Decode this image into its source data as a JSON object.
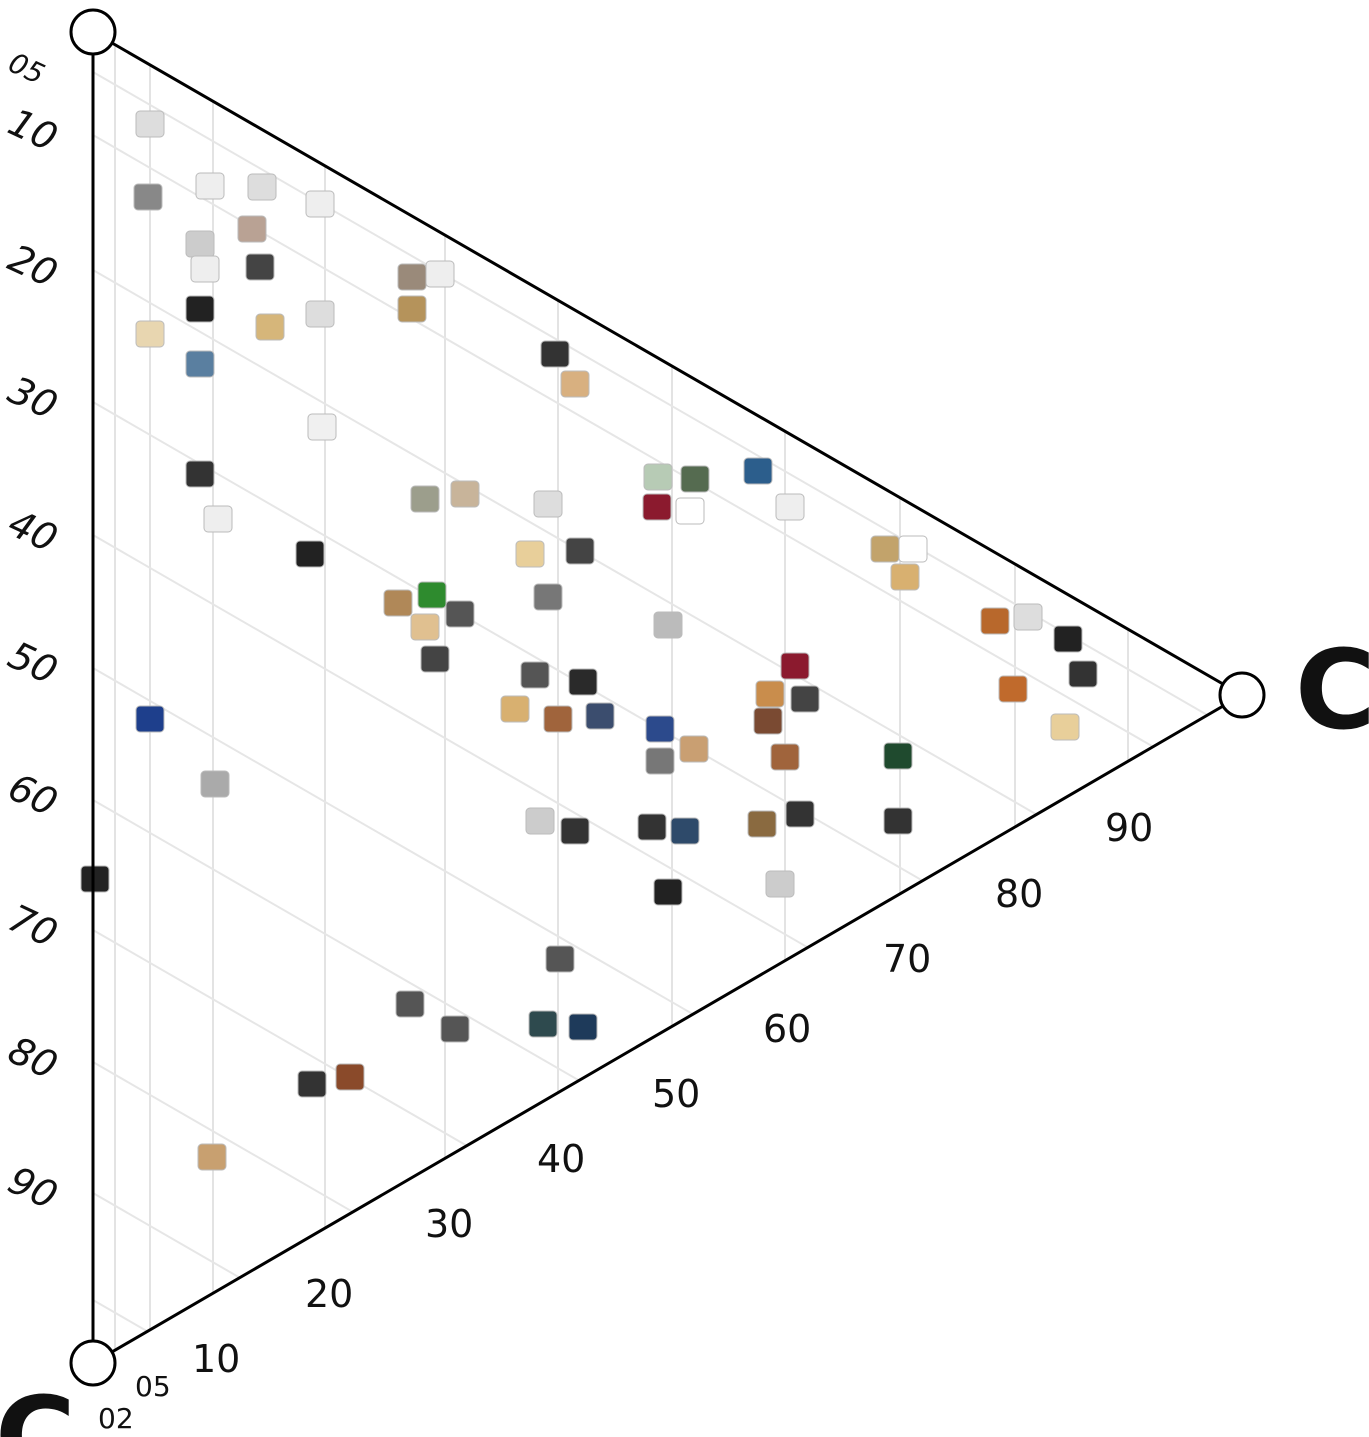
{
  "left_axis": {
    "labels": [
      "05",
      "10",
      "20",
      "30",
      "40",
      "50",
      "60",
      "70",
      "80",
      "90"
    ]
  },
  "bottom_axis": {
    "labels": [
      "02",
      "05",
      "10",
      "20",
      "30",
      "40",
      "50",
      "60",
      "70",
      "80",
      "90"
    ]
  },
  "vertex_labels": {
    "right": "C",
    "bottom": "C"
  }
}
